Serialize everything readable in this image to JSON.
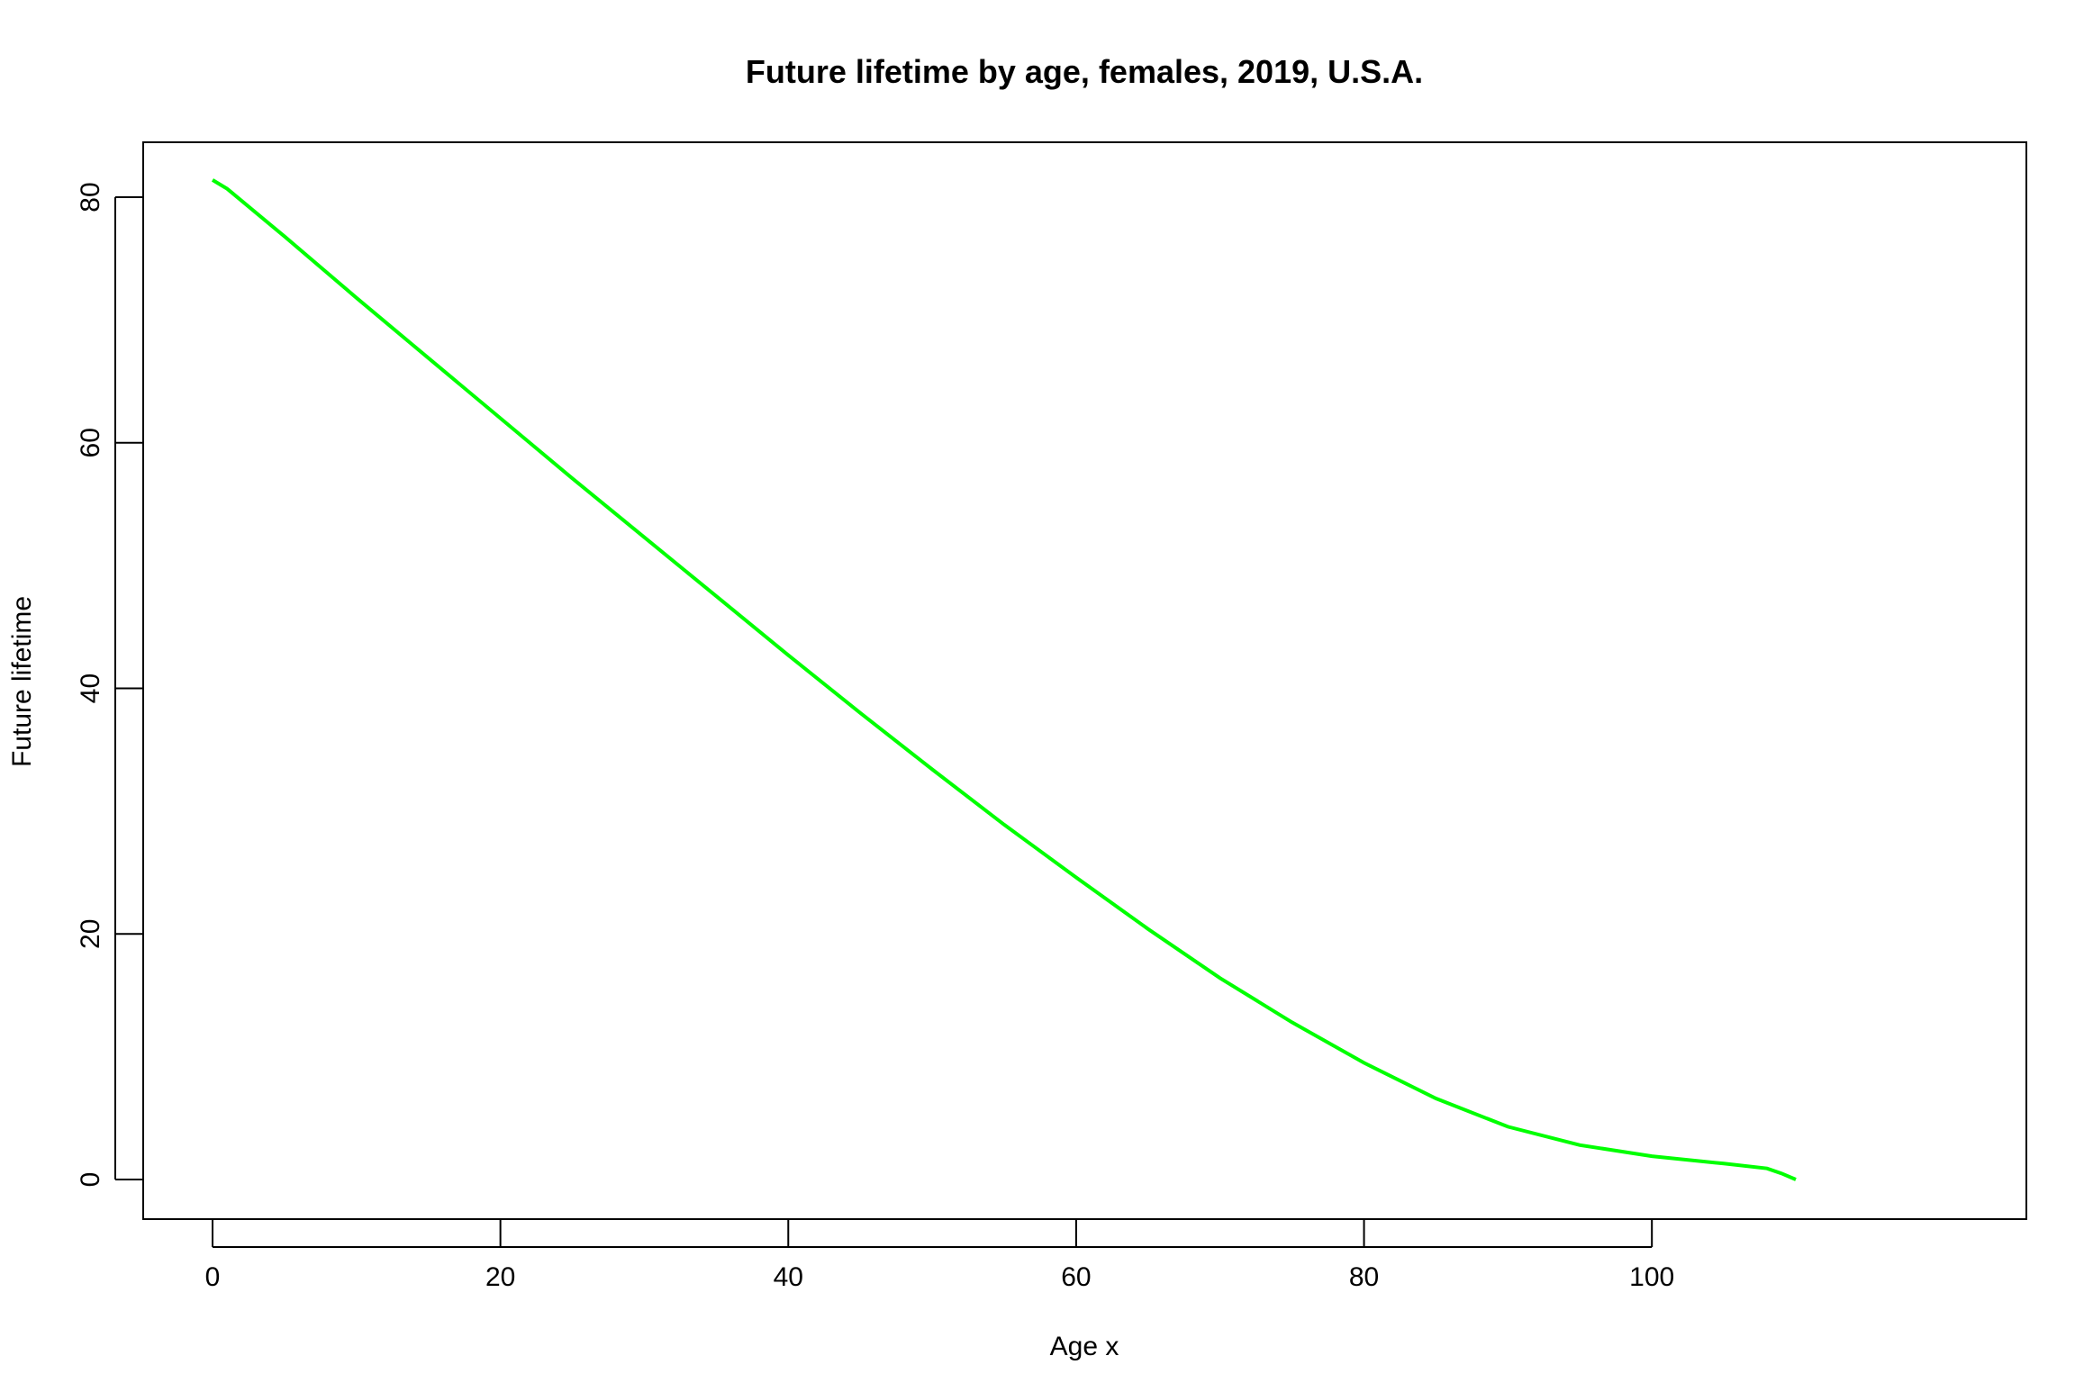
{
  "chart_data": {
    "type": "line",
    "title": "Future lifetime by age, females, 2019, U.S.A.",
    "xlabel": "Age x",
    "ylabel": "Future lifetime",
    "xlim": [
      0,
      110
    ],
    "ylim": [
      0,
      81.4
    ],
    "x_ticks": [
      0,
      20,
      40,
      60,
      80,
      100
    ],
    "y_ticks": [
      0,
      20,
      40,
      60,
      80
    ],
    "grid": false,
    "legend": "none",
    "line_color": "#00ff00",
    "series": [
      {
        "x": [
          0,
          1,
          5,
          10,
          15,
          20,
          25,
          30,
          35,
          40,
          45,
          50,
          55,
          60,
          65,
          70,
          75,
          80,
          85,
          90,
          95,
          100,
          105,
          108,
          109,
          110
        ],
        "y": [
          81.4,
          80.7,
          76.8,
          71.8,
          66.9,
          62.0,
          57.1,
          52.3,
          47.5,
          42.7,
          38.0,
          33.4,
          28.9,
          24.6,
          20.4,
          16.4,
          12.8,
          9.5,
          6.6,
          4.3,
          2.8,
          1.9,
          1.3,
          0.9,
          0.5,
          0.0
        ]
      }
    ]
  }
}
